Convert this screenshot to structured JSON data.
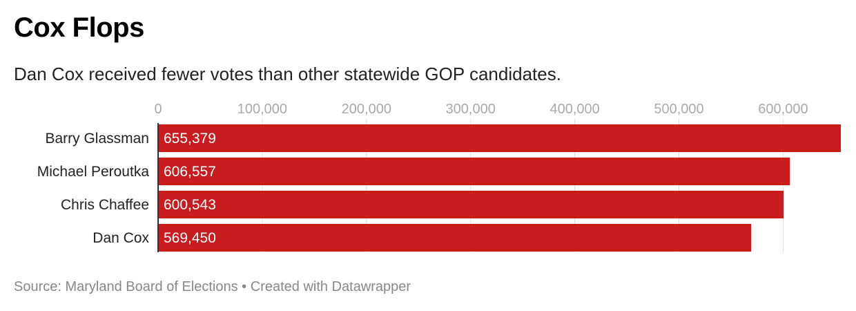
{
  "header": {
    "title": "Cox Flops",
    "subtitle": "Dan Cox received fewer votes than other statewide GOP candidates."
  },
  "footer": {
    "source": "Source: Maryland Board of Elections",
    "separator": "•",
    "credit": "Created with Datawrapper"
  },
  "chart_data": {
    "type": "bar",
    "orientation": "horizontal",
    "categories": [
      "Barry Glassman",
      "Michael Peroutka",
      "Chris Chaffee",
      "Dan Cox"
    ],
    "values": [
      655379,
      606557,
      600543,
      569450
    ],
    "value_labels": [
      "655,379",
      "606,557",
      "600,543",
      "569,450"
    ],
    "x_ticks": [
      0,
      100000,
      200000,
      300000,
      400000,
      500000,
      600000
    ],
    "x_tick_labels": [
      "0",
      "100,000",
      "200,000",
      "300,000",
      "400,000",
      "500,000",
      "600,000"
    ],
    "xlim": [
      0,
      655379
    ],
    "grid": true,
    "axis_position": "top",
    "bar_color": "#c91c1f",
    "label_color": "#ffffff",
    "tick_color": "#aaaaaa",
    "grid_color": "#e0e0e0"
  }
}
